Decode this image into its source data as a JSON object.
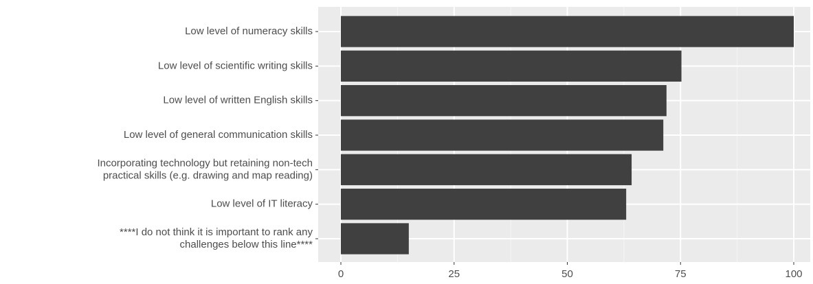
{
  "chart_data": {
    "type": "bar",
    "orientation": "horizontal",
    "title": "",
    "xlabel": "",
    "ylabel": "",
    "xlim": [
      0,
      100
    ],
    "grid": true,
    "categories": [
      {
        "lines": [
          "Low level of numeracy skills"
        ],
        "value": 100
      },
      {
        "lines": [
          "Low level of scientific writing skills"
        ],
        "value": 75.2
      },
      {
        "lines": [
          "Low level of written English skills"
        ],
        "value": 71.9
      },
      {
        "lines": [
          "Low level of general communication skills"
        ],
        "value": 71.2
      },
      {
        "lines": [
          "Incorporating technology but retaining non-tech",
          "practical skills (e.g. drawing and map reading)"
        ],
        "value": 64.2
      },
      {
        "lines": [
          "Low level of IT literacy"
        ],
        "value": 63
      },
      {
        "lines": [
          "****I do not think it is important to rank any",
          "challenges below this line****"
        ],
        "value": 15
      }
    ],
    "x_ticks": [
      "0",
      "25",
      "50",
      "75",
      "100"
    ],
    "colors": {
      "bar": "#404040",
      "panel": "#ebebeb",
      "grid_major": "#ffffff",
      "tick_text": "#4d4d4d",
      "tick_mark": "#333333"
    }
  }
}
